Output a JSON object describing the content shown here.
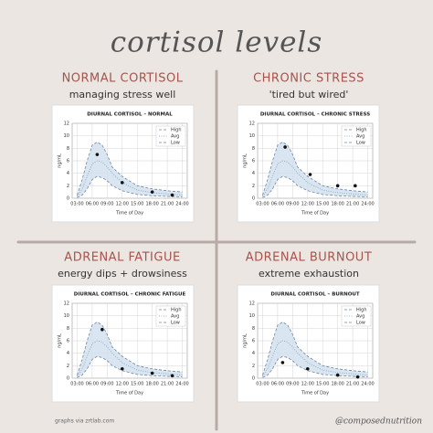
{
  "title": "cortisol levels",
  "credit": "graphs via zrtlab.com",
  "handle": "@composednutrition",
  "chart_data": [
    {
      "type": "line",
      "heading": "NORMAL CORTISOL",
      "subheading": "managing stress well",
      "title": "DIURNAL CORTISOL – NORMAL",
      "ylabel": "ng/mL",
      "xlabel": "Time of Day",
      "x": [
        3,
        4,
        5,
        6,
        7,
        8,
        9,
        10,
        12,
        15,
        18,
        21,
        24
      ],
      "series": [
        {
          "name": "High",
          "color": "#6f86a3",
          "dash": "3,2",
          "values": [
            0.5,
            3,
            6,
            8.5,
            9,
            8.5,
            7,
            5,
            3.5,
            2,
            1.5,
            1.2,
            1
          ]
        },
        {
          "name": "Avg",
          "color": "#8aa0b8",
          "dash": "1,1.5",
          "values": [
            0.3,
            1.5,
            3.5,
            5.5,
            6,
            5.8,
            5,
            4,
            2.5,
            1.3,
            0.9,
            0.7,
            0.5
          ]
        },
        {
          "name": "Low",
          "color": "#6f86a3",
          "dash": "3,2",
          "values": [
            0.1,
            0.5,
            1.5,
            3,
            3.5,
            3.3,
            2.8,
            2,
            1.2,
            0.6,
            0.4,
            0.3,
            0.2
          ]
        }
      ],
      "points": {
        "x": [
          7,
          12,
          18,
          22
        ],
        "y": [
          7,
          2.5,
          1,
          0.5
        ],
        "color": "#111111"
      },
      "band_color": "#cfe0ee",
      "xlim": [
        2,
        25
      ],
      "xticks": [
        {
          "value": 3,
          "label": "03:00"
        },
        {
          "value": 6,
          "label": "06:00"
        },
        {
          "value": 9,
          "label": "09:00"
        },
        {
          "value": 12,
          "label": "12:00"
        },
        {
          "value": 15,
          "label": "15:00"
        },
        {
          "value": 18,
          "label": "18:00"
        },
        {
          "value": 21,
          "label": "21:00"
        },
        {
          "value": 24,
          "label": "24:00"
        }
      ],
      "ylim": [
        0,
        12
      ],
      "yticks": [
        0,
        2,
        4,
        6,
        8,
        10,
        12
      ],
      "grid": true,
      "legend": "upper right"
    },
    {
      "type": "line",
      "heading": "CHRONIC STRESS",
      "subheading": "'tired but wired'",
      "title": "DIURNAL CORTISOL – CHRONIC STRESS",
      "ylabel": "ng/mL",
      "xlabel": "Time of Day",
      "x": [
        3,
        4,
        5,
        6,
        7,
        8,
        9,
        10,
        12,
        15,
        18,
        21,
        24
      ],
      "series": [
        {
          "name": "High",
          "color": "#6f86a3",
          "dash": "3,2",
          "values": [
            0.5,
            3,
            6,
            8.5,
            9,
            8.5,
            7,
            5,
            3.5,
            2,
            1.5,
            1.2,
            1
          ]
        },
        {
          "name": "Avg",
          "color": "#8aa0b8",
          "dash": "1,1.5",
          "values": [
            0.3,
            1.5,
            3.5,
            5.5,
            6,
            5.8,
            5,
            4,
            2.5,
            1.3,
            0.9,
            0.7,
            0.5
          ]
        },
        {
          "name": "Low",
          "color": "#6f86a3",
          "dash": "3,2",
          "values": [
            0.1,
            0.5,
            1.5,
            3,
            3.5,
            3.3,
            2.8,
            2,
            1.2,
            0.6,
            0.4,
            0.3,
            0.2
          ]
        }
      ],
      "points": {
        "x": [
          7.5,
          12.5,
          18,
          21.5
        ],
        "y": [
          8.2,
          3.8,
          2,
          2
        ],
        "color": "#111111"
      },
      "band_color": "#cfe0ee",
      "xlim": [
        2,
        25
      ],
      "xticks": [
        {
          "value": 3,
          "label": "03:00"
        },
        {
          "value": 6,
          "label": "06:00"
        },
        {
          "value": 9,
          "label": "09:00"
        },
        {
          "value": 12,
          "label": "12:00"
        },
        {
          "value": 15,
          "label": "15:00"
        },
        {
          "value": 18,
          "label": "18:00"
        },
        {
          "value": 21,
          "label": "21:00"
        },
        {
          "value": 24,
          "label": "24:00"
        }
      ],
      "ylim": [
        0,
        12
      ],
      "yticks": [
        0,
        2,
        4,
        6,
        8,
        10,
        12
      ],
      "grid": true,
      "legend": "upper right"
    },
    {
      "type": "line",
      "heading": "ADRENAL FATIGUE",
      "subheading": "energy dips + drowsiness",
      "title": "DIURNAL CORTISOL – CHRONIC FATIGUE",
      "ylabel": "ng/mL",
      "xlabel": "Time of Day",
      "x": [
        3,
        4,
        5,
        6,
        7,
        8,
        9,
        10,
        12,
        15,
        18,
        21,
        24
      ],
      "series": [
        {
          "name": "High",
          "color": "#6f86a3",
          "dash": "3,2",
          "values": [
            0.5,
            3,
            6,
            8.5,
            9,
            8.5,
            7,
            5,
            3.5,
            2,
            1.5,
            1.2,
            1
          ]
        },
        {
          "name": "Avg",
          "color": "#8aa0b8",
          "dash": "1,1.5",
          "values": [
            0.3,
            1.5,
            3.5,
            5.5,
            6,
            5.8,
            5,
            4,
            2.5,
            1.3,
            0.9,
            0.7,
            0.5
          ]
        },
        {
          "name": "Low",
          "color": "#6f86a3",
          "dash": "3,2",
          "values": [
            0.1,
            0.5,
            1.5,
            3,
            3.5,
            3.3,
            2.8,
            2,
            1.2,
            0.6,
            0.4,
            0.3,
            0.2
          ]
        }
      ],
      "points": {
        "x": [
          8,
          12,
          18,
          22
        ],
        "y": [
          7.8,
          1.5,
          0.8,
          0.4
        ],
        "color": "#111111"
      },
      "band_color": "#cfe0ee",
      "xlim": [
        2,
        25
      ],
      "xticks": [
        {
          "value": 3,
          "label": "03:00"
        },
        {
          "value": 6,
          "label": "06:00"
        },
        {
          "value": 9,
          "label": "09:00"
        },
        {
          "value": 12,
          "label": "12:00"
        },
        {
          "value": 15,
          "label": "15:00"
        },
        {
          "value": 18,
          "label": "18:00"
        },
        {
          "value": 21,
          "label": "21:00"
        },
        {
          "value": 24,
          "label": "24:00"
        }
      ],
      "ylim": [
        0,
        12
      ],
      "yticks": [
        0,
        2,
        4,
        6,
        8,
        10,
        12
      ],
      "grid": true,
      "legend": "upper right"
    },
    {
      "type": "line",
      "heading": "ADRENAL BURNOUT",
      "subheading": "extreme exhaustion",
      "title": "DIURNAL CORTISOL – BURNOUT",
      "ylabel": "ng/mL",
      "xlabel": "Time of Day",
      "x": [
        3,
        4,
        5,
        6,
        7,
        8,
        9,
        10,
        12,
        15,
        18,
        21,
        24
      ],
      "series": [
        {
          "name": "High",
          "color": "#6f86a3",
          "dash": "3,2",
          "values": [
            0.5,
            3,
            6,
            8.5,
            9,
            8.5,
            7,
            5,
            3.5,
            2,
            1.5,
            1.2,
            1
          ]
        },
        {
          "name": "Avg",
          "color": "#8aa0b8",
          "dash": "1,1.5",
          "values": [
            0.3,
            1.5,
            3.5,
            5.5,
            6,
            5.8,
            5,
            4,
            2.5,
            1.3,
            0.9,
            0.7,
            0.5
          ]
        },
        {
          "name": "Low",
          "color": "#6f86a3",
          "dash": "3,2",
          "values": [
            0.1,
            0.5,
            1.5,
            3,
            3.5,
            3.3,
            2.8,
            2,
            1.2,
            0.6,
            0.4,
            0.3,
            0.2
          ]
        }
      ],
      "points": {
        "x": [
          7,
          12,
          18,
          22
        ],
        "y": [
          2.5,
          1.5,
          0.5,
          0.2
        ],
        "color": "#111111"
      },
      "band_color": "#cfe0ee",
      "xlim": [
        2,
        25
      ],
      "xticks": [
        {
          "value": 3,
          "label": "03:00"
        },
        {
          "value": 6,
          "label": "06:00"
        },
        {
          "value": 9,
          "label": "09:00"
        },
        {
          "value": 12,
          "label": "12:00"
        },
        {
          "value": 15,
          "label": "15:00"
        },
        {
          "value": 18,
          "label": "18:00"
        },
        {
          "value": 21,
          "label": "21:00"
        },
        {
          "value": 24,
          "label": "24:00"
        }
      ],
      "ylim": [
        0,
        12
      ],
      "yticks": [
        0,
        2,
        4,
        6,
        8,
        10,
        12
      ],
      "grid": true,
      "legend": "upper right"
    }
  ]
}
